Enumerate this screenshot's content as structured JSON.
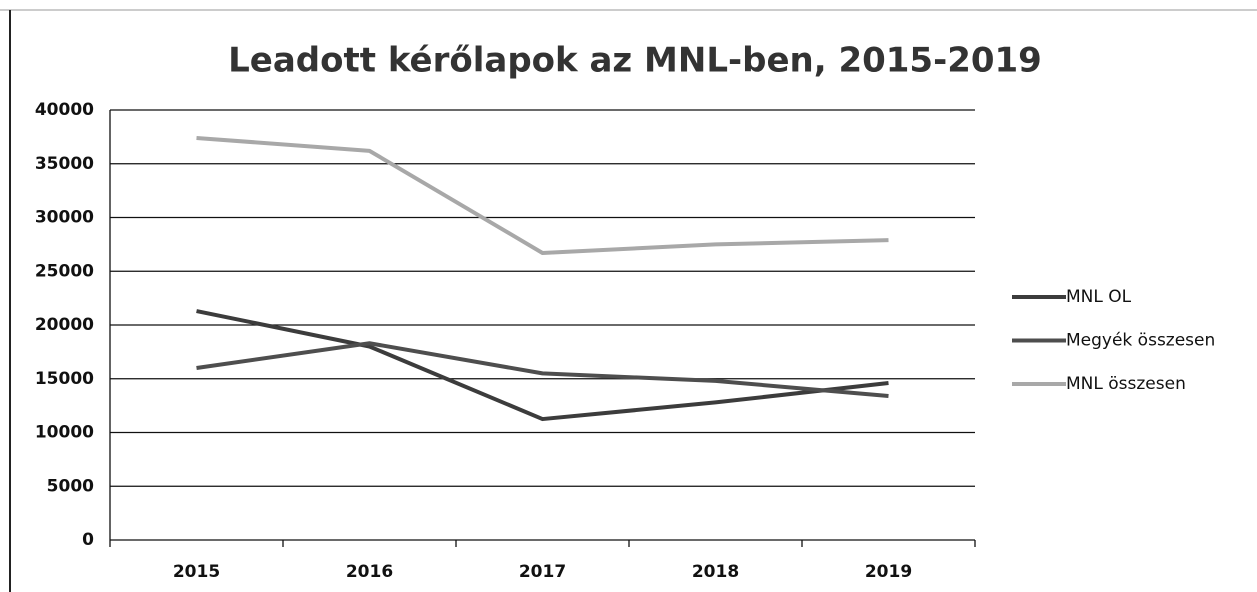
{
  "chart_data": {
    "type": "line",
    "title": "Leadott kérőlapok az MNL-ben, 2015-2019",
    "categories": [
      "2015",
      "2016",
      "2017",
      "2018",
      "2019"
    ],
    "series": [
      {
        "name": "MNL OL",
        "color": "#3c3c3c",
        "values": [
          21300,
          18000,
          11250,
          12800,
          14600
        ]
      },
      {
        "name": "Megyék összesen",
        "color": "#4e4e4e",
        "values": [
          16000,
          18300,
          15500,
          14800,
          13400
        ]
      },
      {
        "name": "MNL összesen",
        "color": "#a8a8a8",
        "values": [
          37400,
          36200,
          26700,
          27500,
          27900
        ]
      }
    ],
    "ylim": [
      0,
      40000
    ],
    "yticks": [
      0,
      5000,
      10000,
      15000,
      20000,
      25000,
      30000,
      35000,
      40000
    ],
    "grid": true,
    "legend": "right"
  }
}
